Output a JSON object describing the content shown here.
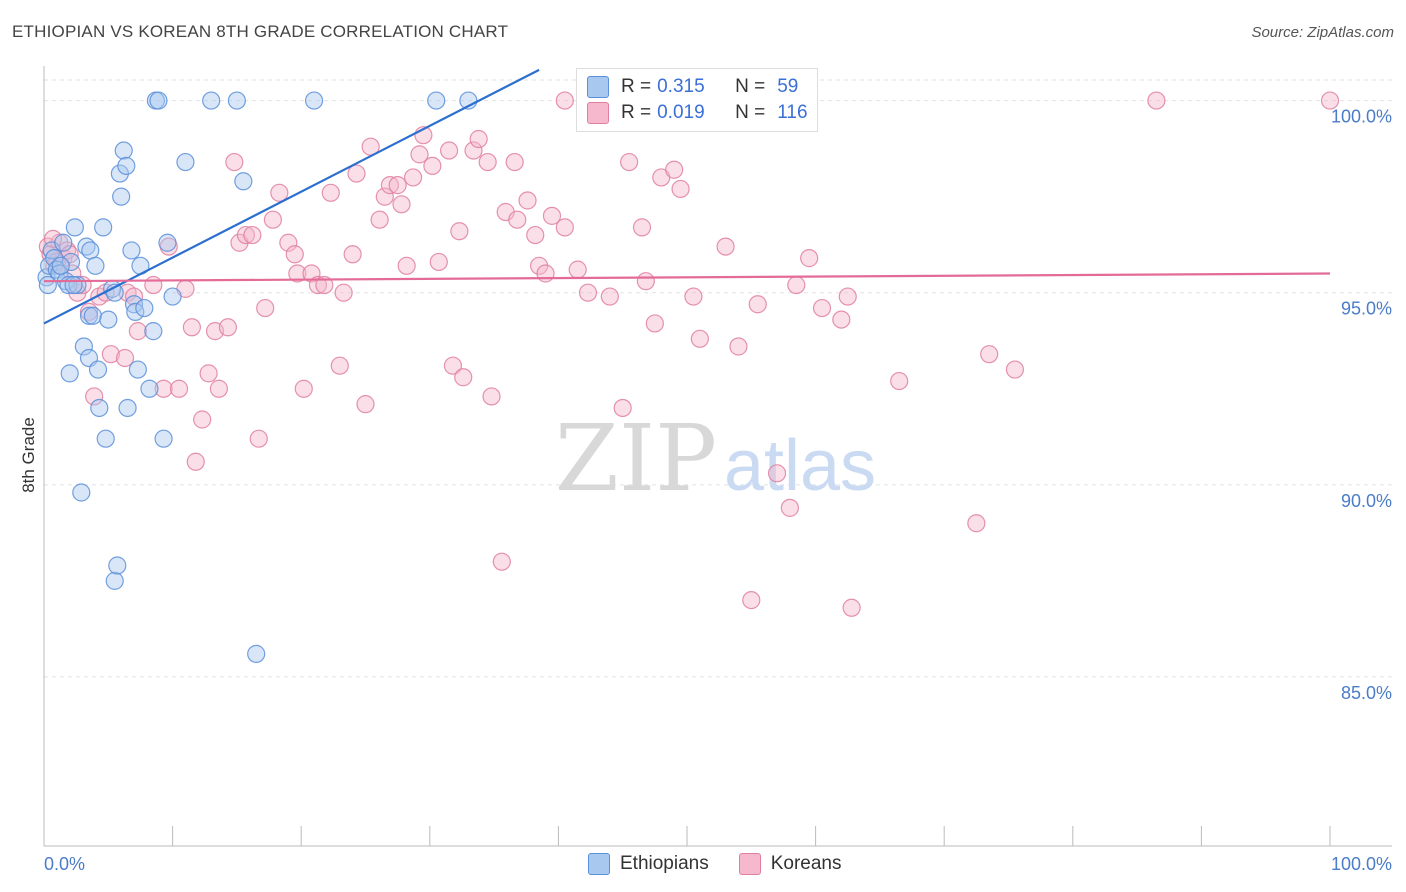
{
  "title": "ETHIOPIAN VS KOREAN 8TH GRADE CORRELATION CHART",
  "source": "Source: ZipAtlas.com",
  "watermark": "ZIPatlas",
  "colors": {
    "ethiopian_fill": "#a8c8f0",
    "ethiopian_stroke": "#5b8fd9",
    "korean_fill": "#f5b8cc",
    "korean_stroke": "#e07fa0",
    "ethiopian_line": "#2b6fcf",
    "korean_line": "#e46b97",
    "tick_label": "#4a7cc9",
    "grid": "#e2e2e2"
  },
  "legend_top": {
    "rows": [
      {
        "r_label": "R =",
        "r_value": "0.315",
        "n_label": "N =",
        "n_value": "59"
      },
      {
        "r_label": "R =",
        "r_value": "0.019",
        "n_label": "N =",
        "n_value": "116"
      }
    ]
  },
  "legend_bottom": {
    "ethiopian": "Ethiopians",
    "korean": "Koreans"
  },
  "chart_data": {
    "type": "scatter",
    "xlabel": "",
    "ylabel": "8th Grade",
    "xlim": [
      0,
      100
    ],
    "ylim": [
      80.6,
      100.9
    ],
    "x_tick_labels": [
      "0.0%",
      "100.0%"
    ],
    "y_ticks": [
      85,
      90,
      95,
      100
    ],
    "y_tick_labels": [
      "85.0%",
      "90.0%",
      "95.0%",
      "100.0%"
    ],
    "grid": true,
    "series": [
      {
        "name": "Ethiopians",
        "trend": {
          "x": [
            0,
            38.5
          ],
          "y": [
            94.2,
            100.8
          ]
        },
        "points": [
          [
            0.2,
            95.4
          ],
          [
            0.4,
            95.7
          ],
          [
            0.6,
            96.1
          ],
          [
            0.8,
            95.9
          ],
          [
            1.0,
            95.6
          ],
          [
            1.2,
            95.5
          ],
          [
            1.5,
            96.3
          ],
          [
            1.7,
            95.3
          ],
          [
            1.9,
            95.2
          ],
          [
            2.0,
            92.9
          ],
          [
            2.1,
            95.8
          ],
          [
            2.4,
            96.7
          ],
          [
            2.6,
            95.2
          ],
          [
            2.9,
            89.8
          ],
          [
            3.1,
            93.6
          ],
          [
            3.3,
            96.2
          ],
          [
            3.5,
            94.4
          ],
          [
            3.6,
            96.1
          ],
          [
            3.5,
            93.3
          ],
          [
            3.8,
            94.4
          ],
          [
            4.0,
            95.7
          ],
          [
            4.2,
            93.0
          ],
          [
            4.3,
            92.0
          ],
          [
            4.6,
            96.7
          ],
          [
            4.8,
            91.2
          ],
          [
            5.0,
            94.3
          ],
          [
            5.3,
            95.1
          ],
          [
            5.5,
            95.0
          ],
          [
            5.5,
            87.5
          ],
          [
            5.7,
            87.9
          ],
          [
            5.9,
            98.1
          ],
          [
            6.0,
            97.5
          ],
          [
            6.2,
            98.7
          ],
          [
            6.4,
            98.3
          ],
          [
            6.5,
            92.0
          ],
          [
            6.8,
            96.1
          ],
          [
            7.0,
            94.7
          ],
          [
            7.1,
            94.5
          ],
          [
            7.3,
            93.0
          ],
          [
            7.5,
            95.7
          ],
          [
            7.8,
            94.6
          ],
          [
            8.2,
            92.5
          ],
          [
            8.5,
            94.0
          ],
          [
            8.7,
            100.0
          ],
          [
            8.9,
            100.0
          ],
          [
            9.3,
            91.2
          ],
          [
            9.6,
            96.3
          ],
          [
            10.0,
            94.9
          ],
          [
            11.0,
            98.4
          ],
          [
            13.0,
            100.0
          ],
          [
            15.0,
            100.0
          ],
          [
            15.5,
            97.9
          ],
          [
            16.5,
            85.6
          ],
          [
            21.0,
            100.0
          ],
          [
            30.5,
            100.0
          ],
          [
            33.0,
            100.0
          ],
          [
            0.3,
            95.2
          ],
          [
            1.3,
            95.7
          ],
          [
            2.3,
            95.2
          ]
        ]
      },
      {
        "name": "Koreans",
        "trend": {
          "x": [
            0,
            100
          ],
          "y": [
            95.3,
            95.5
          ]
        },
        "points": [
          [
            0.3,
            96.2
          ],
          [
            0.5,
            96.0
          ],
          [
            0.8,
            95.7
          ],
          [
            1.2,
            96.3
          ],
          [
            1.5,
            95.9
          ],
          [
            1.8,
            96.1
          ],
          [
            2.2,
            95.5
          ],
          [
            2.6,
            95.0
          ],
          [
            3.0,
            95.2
          ],
          [
            3.5,
            94.5
          ],
          [
            3.9,
            92.3
          ],
          [
            4.3,
            94.9
          ],
          [
            5.2,
            93.4
          ],
          [
            6.3,
            93.3
          ],
          [
            6.5,
            95.0
          ],
          [
            7.0,
            94.9
          ],
          [
            7.3,
            94.0
          ],
          [
            8.5,
            95.2
          ],
          [
            9.3,
            92.5
          ],
          [
            9.7,
            96.2
          ],
          [
            10.5,
            92.5
          ],
          [
            11.0,
            95.1
          ],
          [
            11.5,
            94.1
          ],
          [
            11.8,
            90.6
          ],
          [
            12.3,
            91.7
          ],
          [
            12.8,
            92.9
          ],
          [
            13.3,
            94.0
          ],
          [
            13.6,
            92.5
          ],
          [
            14.3,
            94.1
          ],
          [
            14.8,
            98.4
          ],
          [
            15.2,
            96.3
          ],
          [
            15.7,
            96.5
          ],
          [
            16.2,
            96.5
          ],
          [
            16.7,
            91.2
          ],
          [
            17.2,
            94.6
          ],
          [
            17.8,
            96.9
          ],
          [
            18.3,
            97.6
          ],
          [
            19.0,
            96.3
          ],
          [
            19.5,
            96.0
          ],
          [
            19.7,
            95.5
          ],
          [
            20.2,
            92.5
          ],
          [
            20.8,
            95.5
          ],
          [
            21.3,
            95.2
          ],
          [
            21.8,
            95.2
          ],
          [
            22.3,
            97.6
          ],
          [
            23.0,
            93.1
          ],
          [
            23.3,
            95.0
          ],
          [
            24.0,
            96.0
          ],
          [
            24.3,
            98.1
          ],
          [
            25.0,
            92.1
          ],
          [
            25.4,
            98.8
          ],
          [
            26.1,
            96.9
          ],
          [
            26.5,
            97.5
          ],
          [
            26.9,
            97.8
          ],
          [
            27.5,
            97.8
          ],
          [
            27.8,
            97.3
          ],
          [
            28.2,
            95.7
          ],
          [
            28.7,
            98.0
          ],
          [
            29.2,
            98.6
          ],
          [
            29.5,
            99.1
          ],
          [
            30.2,
            98.3
          ],
          [
            30.7,
            95.8
          ],
          [
            31.5,
            98.7
          ],
          [
            31.8,
            93.1
          ],
          [
            32.3,
            96.6
          ],
          [
            32.6,
            92.8
          ],
          [
            33.4,
            98.7
          ],
          [
            33.8,
            99.0
          ],
          [
            34.5,
            98.4
          ],
          [
            34.8,
            92.3
          ],
          [
            35.6,
            88.0
          ],
          [
            35.9,
            97.1
          ],
          [
            36.6,
            98.4
          ],
          [
            36.8,
            96.9
          ],
          [
            37.6,
            97.4
          ],
          [
            38.2,
            96.5
          ],
          [
            38.5,
            95.7
          ],
          [
            39.0,
            95.5
          ],
          [
            39.5,
            97.0
          ],
          [
            40.5,
            96.7
          ],
          [
            41.5,
            95.6
          ],
          [
            42.3,
            95.0
          ],
          [
            44.0,
            94.9
          ],
          [
            45.0,
            92.0
          ],
          [
            45.5,
            98.4
          ],
          [
            46.5,
            96.7
          ],
          [
            46.8,
            95.3
          ],
          [
            47.5,
            94.2
          ],
          [
            48.0,
            98.0
          ],
          [
            49.0,
            98.2
          ],
          [
            49.5,
            97.7
          ],
          [
            50.5,
            94.9
          ],
          [
            51.0,
            93.8
          ],
          [
            53.0,
            96.2
          ],
          [
            54.0,
            93.6
          ],
          [
            55.0,
            87.0
          ],
          [
            55.5,
            94.7
          ],
          [
            57.0,
            90.3
          ],
          [
            58.0,
            89.4
          ],
          [
            58.5,
            95.2
          ],
          [
            59.5,
            95.9
          ],
          [
            60.5,
            94.6
          ],
          [
            62.0,
            94.3
          ],
          [
            62.5,
            94.9
          ],
          [
            62.8,
            86.8
          ],
          [
            66.5,
            92.7
          ],
          [
            72.5,
            89.0
          ],
          [
            73.5,
            93.4
          ],
          [
            75.5,
            93.0
          ],
          [
            86.5,
            100.0
          ],
          [
            100.0,
            100.0
          ],
          [
            40.5,
            100.0
          ],
          [
            0.7,
            96.4
          ],
          [
            2.0,
            96.0
          ],
          [
            1.0,
            95.8
          ],
          [
            4.8,
            95.0
          ]
        ]
      }
    ]
  }
}
